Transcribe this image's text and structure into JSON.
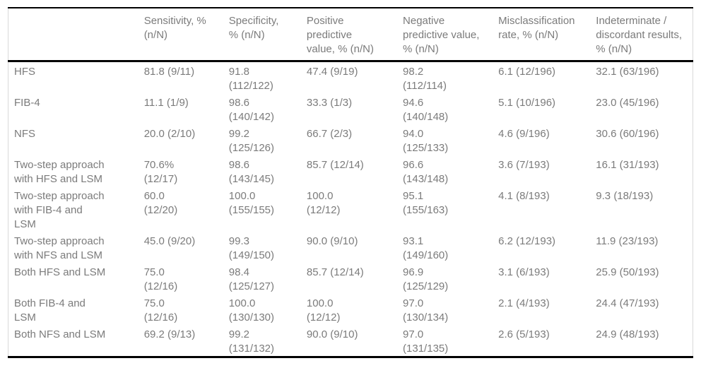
{
  "table": {
    "columns": [
      {
        "key": "row-label",
        "label": ""
      },
      {
        "key": "sensitivity",
        "label": "Sensitivity, %\n(n/N)"
      },
      {
        "key": "specificity",
        "label": "Specificity,\n% (n/N)"
      },
      {
        "key": "ppv",
        "label": "Positive\npredictive\nvalue, % (n/N)"
      },
      {
        "key": "npv",
        "label": "Negative\npredictive value,\n% (n/N)"
      },
      {
        "key": "misclassification",
        "label": "Misclassification\nrate, % (n/N)"
      },
      {
        "key": "indeterminate",
        "label": "Indeterminate /\ndiscordant results,\n% (n/N)"
      }
    ],
    "rows": [
      {
        "label": "HFS",
        "cells": [
          "81.8 (9/11)",
          "91.8\n(112/122)",
          "47.4 (9/19)",
          "98.2\n(112/114)",
          "6.1 (12/196)",
          "32.1 (63/196)"
        ]
      },
      {
        "label": "FIB-4",
        "cells": [
          "11.1 (1/9)",
          "98.6\n(140/142)",
          "33.3 (1/3)",
          "94.6\n(140/148)",
          "5.1 (10/196)",
          "23.0 (45/196)"
        ]
      },
      {
        "label": "NFS",
        "cells": [
          "20.0 (2/10)",
          "99.2\n(125/126)",
          "66.7 (2/3)",
          "94.0\n(125/133)",
          "4.6 (9/196)",
          "30.6 (60/196)"
        ]
      },
      {
        "label": "Two-step approach\nwith HFS and LSM",
        "cells": [
          "70.6%\n(12/17)",
          "98.6\n(143/145)",
          "85.7 (12/14)",
          "96.6\n(143/148)",
          "3.6 (7/193)",
          "16.1 (31/193)"
        ]
      },
      {
        "label": "Two-step approach\nwith FIB-4 and\nLSM",
        "cells": [
          "60.0\n(12/20)",
          "100.0\n(155/155)",
          "100.0\n(12/12)",
          "95.1\n(155/163)",
          "4.1 (8/193)",
          "9.3 (18/193)"
        ]
      },
      {
        "label": "Two-step approach\nwith NFS and LSM",
        "cells": [
          "45.0 (9/20)",
          "99.3\n(149/150)",
          "90.0 (9/10)",
          "93.1\n(149/160)",
          "6.2 (12/193)",
          "11.9 (23/193)"
        ]
      },
      {
        "label": "Both HFS and LSM",
        "cells": [
          "75.0\n(12/16)",
          "98.4\n(125/127)",
          "85.7 (12/14)",
          "96.9\n(125/129)",
          "3.1 (6/193)",
          "25.9 (50/193)"
        ]
      },
      {
        "label": "Both FIB-4 and\nLSM",
        "cells": [
          "75.0\n(12/16)",
          "100.0\n(130/130)",
          "100.0\n(12/12)",
          "97.0\n(130/134)",
          "2.1 (4/193)",
          "24.4 (47/193)"
        ]
      },
      {
        "label": "Both NFS and LSM",
        "cells": [
          "69.2 (9/13)",
          "99.2\n(131/132)",
          "90.0 (9/10)",
          "97.0\n(131/135)",
          "2.6 (5/193)",
          "24.9 (48/193)"
        ]
      }
    ]
  }
}
